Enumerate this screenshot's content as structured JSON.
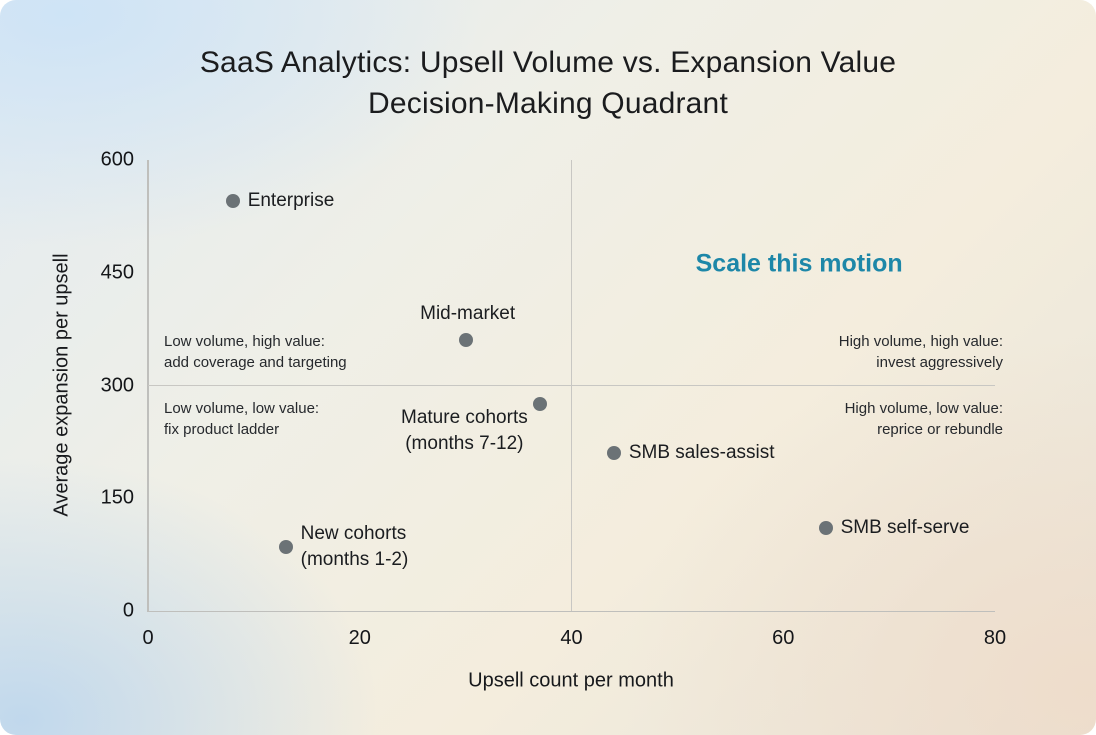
{
  "title": {
    "line1": "SaaS Analytics: Upsell Volume vs. Expansion Value",
    "line2": "Decision-Making Quadrant"
  },
  "chart_data": {
    "type": "scatter",
    "title": "SaaS Analytics: Upsell Volume vs. Expansion Value Decision-Making Quadrant",
    "xlabel": "Upsell count per month",
    "ylabel": "Average expansion per upsell",
    "xlim": [
      0,
      80
    ],
    "ylim": [
      0,
      600
    ],
    "x_ticks": [
      "0",
      "20",
      "40",
      "60",
      "80"
    ],
    "y_ticks": [
      "0",
      "150",
      "300",
      "450",
      "600"
    ],
    "grid": false,
    "legend": "none",
    "quadrant_divider": {
      "x": 40,
      "y": 300
    },
    "point_color": "#6b7276",
    "axis_color": "#bfbfbc",
    "divider_color": "#c8c7c3",
    "points": [
      {
        "label": "Enterprise",
        "x": 8,
        "y": 545,
        "label_lines": [
          "Enterprise"
        ],
        "label_pos": "right"
      },
      {
        "label": "Mid-market",
        "x": 30,
        "y": 360,
        "label_lines": [
          "Mid-market"
        ],
        "label_pos": "above"
      },
      {
        "label": "Mature cohorts (months 7-12)",
        "x": 37,
        "y": 275,
        "label_lines": [
          "Mature cohorts",
          "(months 7-12)"
        ],
        "label_pos": "left-below"
      },
      {
        "label": "SMB sales-assist",
        "x": 44,
        "y": 210,
        "label_lines": [
          "SMB sales-assist"
        ],
        "label_pos": "right"
      },
      {
        "label": "SMB self-serve",
        "x": 64,
        "y": 110,
        "label_lines": [
          "SMB self-serve"
        ],
        "label_pos": "right"
      },
      {
        "label": "New cohorts (months 1-2)",
        "x": 13,
        "y": 85,
        "label_lines": [
          "New cohorts",
          "(months 1-2)"
        ],
        "label_pos": "right"
      }
    ],
    "quadrant_labels": [
      {
        "id": "low-volume-high-value",
        "lines": [
          "Low volume, high value:",
          "add coverage and targeting"
        ],
        "position": "left-above"
      },
      {
        "id": "low-volume-low-value",
        "lines": [
          "Low volume, low value:",
          "fix product ladder"
        ],
        "position": "left-below"
      },
      {
        "id": "high-volume-high-value",
        "lines": [
          "High volume, high value:",
          "invest aggressively"
        ],
        "position": "right-above"
      },
      {
        "id": "high-volume-low-value",
        "lines": [
          "High volume, low value:",
          "reprice or rebundle"
        ],
        "position": "right-below"
      }
    ],
    "annotation": {
      "text": "Scale this motion",
      "x": 61.5,
      "y": 462,
      "color": "#1d87a8"
    }
  }
}
